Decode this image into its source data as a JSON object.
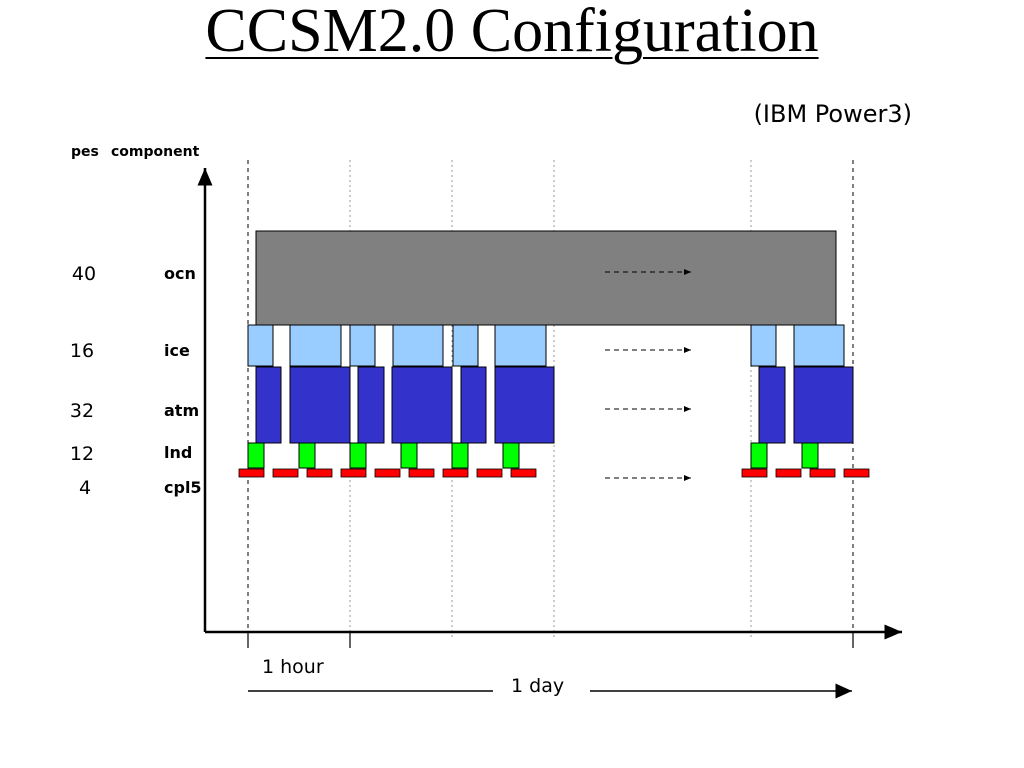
{
  "title": "CCSM2.0 Configuration",
  "subtitle": "(IBM Power3)",
  "headers": {
    "pes": "pes",
    "component": "component"
  },
  "components": [
    {
      "pes": "40",
      "name": "ocn"
    },
    {
      "pes": "16",
      "name": "ice"
    },
    {
      "pes": "32",
      "name": "atm"
    },
    {
      "pes": "12",
      "name": "lnd"
    },
    {
      "pes": "4",
      "name": "cpl5"
    }
  ],
  "annotations": {
    "hour": "1 hour",
    "day": "1 day"
  },
  "colors": {
    "ocn": "#808080",
    "ice": "#99ccff",
    "atm": "#3333cc",
    "lnd": "#00ff00",
    "cpl": "#ff0000"
  }
}
